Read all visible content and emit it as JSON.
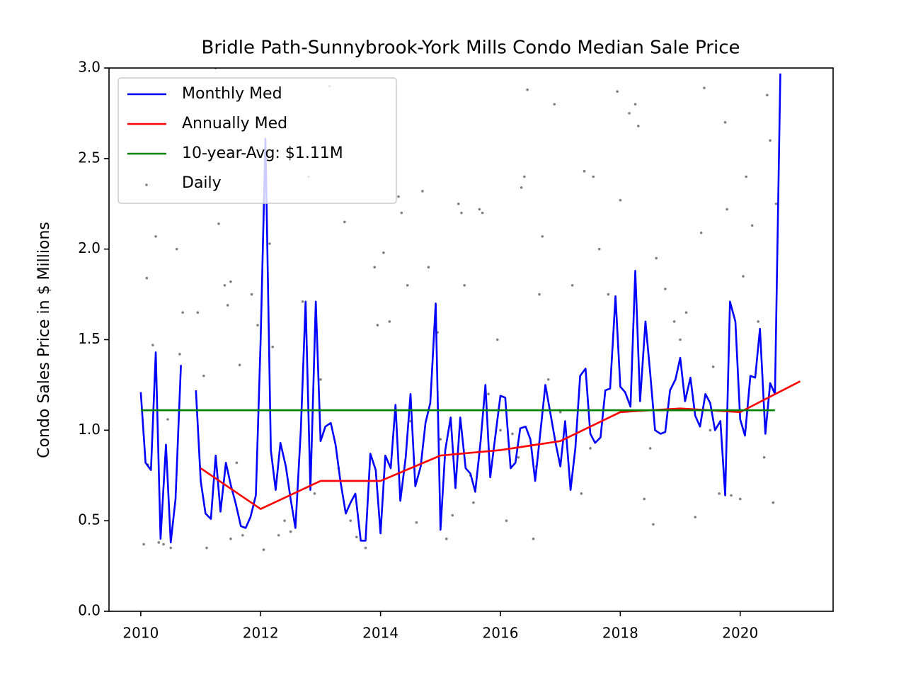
{
  "chart_data": {
    "type": "line",
    "title": "Bridle Path-Sunnybrook-York Mills Condo Median Sale Price",
    "y_label": "Condo Sales Price in $ Millions",
    "xlim": [
      2009.47,
      2021.55
    ],
    "ylim": [
      0,
      3
    ],
    "xticks": [
      2010,
      2012,
      2014,
      2016,
      2018,
      2020
    ],
    "yticks": [
      {
        "value": 0,
        "label": "0.0"
      },
      {
        "value": 0.5,
        "label": "0.5"
      },
      {
        "value": 1,
        "label": "1.0"
      },
      {
        "value": 1.5,
        "label": "1.5"
      },
      {
        "value": 2,
        "label": "2.0"
      },
      {
        "value": 2.5,
        "label": "2.5"
      },
      {
        "value": 3,
        "label": "3.0"
      }
    ],
    "grid": false,
    "legend": "upper left",
    "series": [
      {
        "name": "Monthly Med",
        "type": "line",
        "color": "#0000ff",
        "x": [
          2010.0,
          2010.08,
          2010.17,
          2010.25,
          2010.33,
          2010.42,
          2010.5,
          2010.58,
          2010.67,
          2010.75,
          2010.83,
          2010.92,
          2011.0,
          2011.08,
          2011.17,
          2011.25,
          2011.33,
          2011.42,
          2011.5,
          2011.58,
          2011.67,
          2011.75,
          2011.83,
          2011.92,
          2012.0,
          2012.08,
          2012.17,
          2012.25,
          2012.33,
          2012.42,
          2012.5,
          2012.58,
          2012.67,
          2012.75,
          2012.83,
          2012.92,
          2013.0,
          2013.08,
          2013.17,
          2013.25,
          2013.33,
          2013.42,
          2013.5,
          2013.58,
          2013.67,
          2013.75,
          2013.83,
          2013.92,
          2014.0,
          2014.08,
          2014.17,
          2014.25,
          2014.33,
          2014.42,
          2014.5,
          2014.58,
          2014.67,
          2014.75,
          2014.83,
          2014.92,
          2015.0,
          2015.08,
          2015.17,
          2015.25,
          2015.33,
          2015.42,
          2015.5,
          2015.58,
          2015.67,
          2015.75,
          2015.83,
          2015.92,
          2016.0,
          2016.08,
          2016.17,
          2016.25,
          2016.33,
          2016.42,
          2016.5,
          2016.58,
          2016.67,
          2016.75,
          2016.83,
          2016.92,
          2017.0,
          2017.08,
          2017.17,
          2017.25,
          2017.33,
          2017.42,
          2017.5,
          2017.58,
          2017.67,
          2017.75,
          2017.83,
          2017.92,
          2018.0,
          2018.08,
          2018.17,
          2018.25,
          2018.33,
          2018.42,
          2018.5,
          2018.58,
          2018.67,
          2018.75,
          2018.83,
          2018.92,
          2019.0,
          2019.08,
          2019.17,
          2019.25,
          2019.33,
          2019.42,
          2019.5,
          2019.58,
          2019.67,
          2019.75,
          2019.83,
          2019.92,
          2020.0,
          2020.08,
          2020.17,
          2020.25,
          2020.33,
          2020.42,
          2020.5,
          2020.58,
          2020.67
        ],
        "values": [
          1.21,
          0.82,
          0.78,
          1.43,
          0.4,
          0.92,
          0.38,
          0.62,
          1.36,
          null,
          null,
          1.22,
          0.72,
          0.54,
          0.51,
          0.86,
          0.55,
          0.82,
          0.7,
          0.6,
          0.47,
          0.46,
          0.52,
          0.64,
          1.5,
          2.61,
          0.89,
          0.67,
          0.93,
          0.8,
          0.62,
          0.46,
          1.0,
          1.71,
          0.67,
          1.71,
          0.94,
          1.02,
          1.04,
          0.92,
          0.72,
          0.54,
          0.6,
          0.65,
          0.39,
          0.39,
          0.87,
          0.78,
          0.43,
          0.86,
          0.79,
          1.14,
          0.61,
          0.85,
          1.2,
          0.69,
          0.8,
          1.04,
          1.15,
          1.7,
          0.45,
          0.89,
          1.07,
          0.68,
          1.07,
          0.79,
          0.76,
          0.66,
          0.94,
          1.25,
          0.74,
          0.98,
          1.19,
          1.18,
          0.79,
          0.82,
          1.01,
          1.02,
          0.95,
          0.72,
          1.0,
          1.25,
          1.1,
          0.93,
          0.8,
          1.05,
          0.67,
          0.9,
          1.3,
          1.34,
          0.98,
          0.93,
          0.96,
          1.22,
          1.23,
          1.74,
          1.24,
          1.21,
          1.13,
          1.88,
          1.16,
          1.6,
          1.31,
          1.0,
          0.98,
          0.99,
          1.22,
          1.28,
          1.4,
          1.16,
          1.29,
          1.08,
          1.02,
          1.2,
          1.15,
          1.0,
          1.05,
          0.64,
          1.71,
          1.6,
          1.06,
          0.97,
          1.3,
          1.29,
          1.56,
          0.98,
          1.26,
          1.2,
          2.97
        ]
      },
      {
        "name": "Annually Med",
        "type": "line",
        "color": "#ff0000",
        "x": [
          2011,
          2012,
          2013,
          2014,
          2015,
          2016,
          2017,
          2018,
          2019,
          2020,
          2021
        ],
        "values": [
          0.79,
          0.565,
          0.72,
          0.72,
          0.86,
          0.89,
          0.94,
          1.1,
          1.12,
          1.1,
          1.27
        ]
      },
      {
        "name": "10-year-Avg: $1.11M",
        "type": "line",
        "color": "#008000",
        "x": [
          2010,
          2020.58
        ],
        "values": [
          1.11,
          1.11
        ]
      },
      {
        "name": "Daily",
        "type": "scatter",
        "color": "#808080",
        "x": [
          2010.05,
          2010.1,
          2010.12,
          2010.2,
          2010.25,
          2010.3,
          2010.38,
          2010.45,
          2010.5,
          2010.6,
          2010.65,
          2010.7,
          2010.95,
          2011.05,
          2011.1,
          2011.25,
          2011.3,
          2011.4,
          2011.45,
          2011.5,
          2011.6,
          2011.65,
          2011.7,
          2011.85,
          2011.95,
          2012.05,
          2012.15,
          2012.2,
          2012.3,
          2012.5,
          2012.7,
          2012.8,
          2013.0,
          2013.15,
          2013.3,
          2013.4,
          2013.6,
          2013.75,
          2013.9,
          2013.95,
          2014.05,
          2014.15,
          2014.3,
          2014.35,
          2014.45,
          2014.6,
          2014.7,
          2014.8,
          2014.95,
          2015.1,
          2015.2,
          2015.3,
          2015.35,
          2015.4,
          2015.55,
          2015.65,
          2015.7,
          2015.8,
          2015.95,
          2016.1,
          2016.2,
          2016.35,
          2016.4,
          2016.45,
          2016.55,
          2016.65,
          2016.7,
          2016.8,
          2016.9,
          2017.2,
          2017.35,
          2017.4,
          2017.55,
          2017.65,
          2017.8,
          2017.95,
          2018.0,
          2018.15,
          2018.25,
          2018.3,
          2018.4,
          2018.55,
          2018.6,
          2018.75,
          2018.9,
          2019.0,
          2019.1,
          2019.25,
          2019.35,
          2019.4,
          2019.55,
          2019.65,
          2019.75,
          2019.78,
          2019.85,
          2020.0,
          2020.05,
          2020.1,
          2020.2,
          2020.3,
          2020.4,
          2020.45,
          2020.5,
          2020.55,
          2020.6,
          2014.5,
          2015.0,
          2015.5,
          2016.0,
          2016.3,
          2016.6,
          2017.0,
          2017.5,
          2018.5,
          2019.5,
          2013.5,
          2012.9,
          2011.5,
          2012.4
        ],
        "values": [
          0.37,
          1.84,
          0.81,
          1.47,
          2.07,
          0.38,
          0.37,
          1.06,
          0.35,
          2.0,
          1.42,
          1.65,
          1.65,
          1.3,
          0.35,
          3.0,
          2.14,
          1.8,
          1.69,
          1.82,
          0.82,
          1.36,
          0.42,
          1.75,
          1.58,
          0.34,
          2.03,
          1.46,
          0.42,
          0.44,
          1.71,
          2.4,
          1.28,
          2.9,
          0.79,
          2.15,
          0.41,
          0.35,
          1.9,
          1.58,
          1.98,
          1.6,
          2.29,
          2.2,
          1.8,
          0.49,
          2.32,
          1.9,
          1.54,
          0.4,
          0.53,
          2.25,
          2.2,
          1.8,
          0.6,
          2.22,
          2.2,
          1.2,
          1.5,
          0.5,
          0.98,
          2.34,
          2.4,
          2.88,
          0.4,
          1.75,
          2.07,
          1.28,
          2.8,
          1.8,
          0.65,
          2.43,
          2.4,
          2.0,
          1.75,
          2.87,
          2.27,
          2.75,
          2.8,
          2.68,
          0.62,
          0.48,
          1.95,
          1.78,
          1.6,
          1.5,
          1.65,
          0.52,
          2.09,
          2.89,
          1.35,
          0.65,
          2.7,
          2.22,
          0.64,
          0.62,
          1.85,
          2.4,
          2.13,
          1.6,
          0.85,
          2.85,
          2.6,
          0.6,
          2.25,
          1.05,
          0.95,
          0.75,
          1.0,
          0.85,
          0.8,
          1.1,
          0.9,
          0.9,
          1.0,
          0.5,
          0.65,
          0.4,
          0.5
        ]
      }
    ]
  }
}
